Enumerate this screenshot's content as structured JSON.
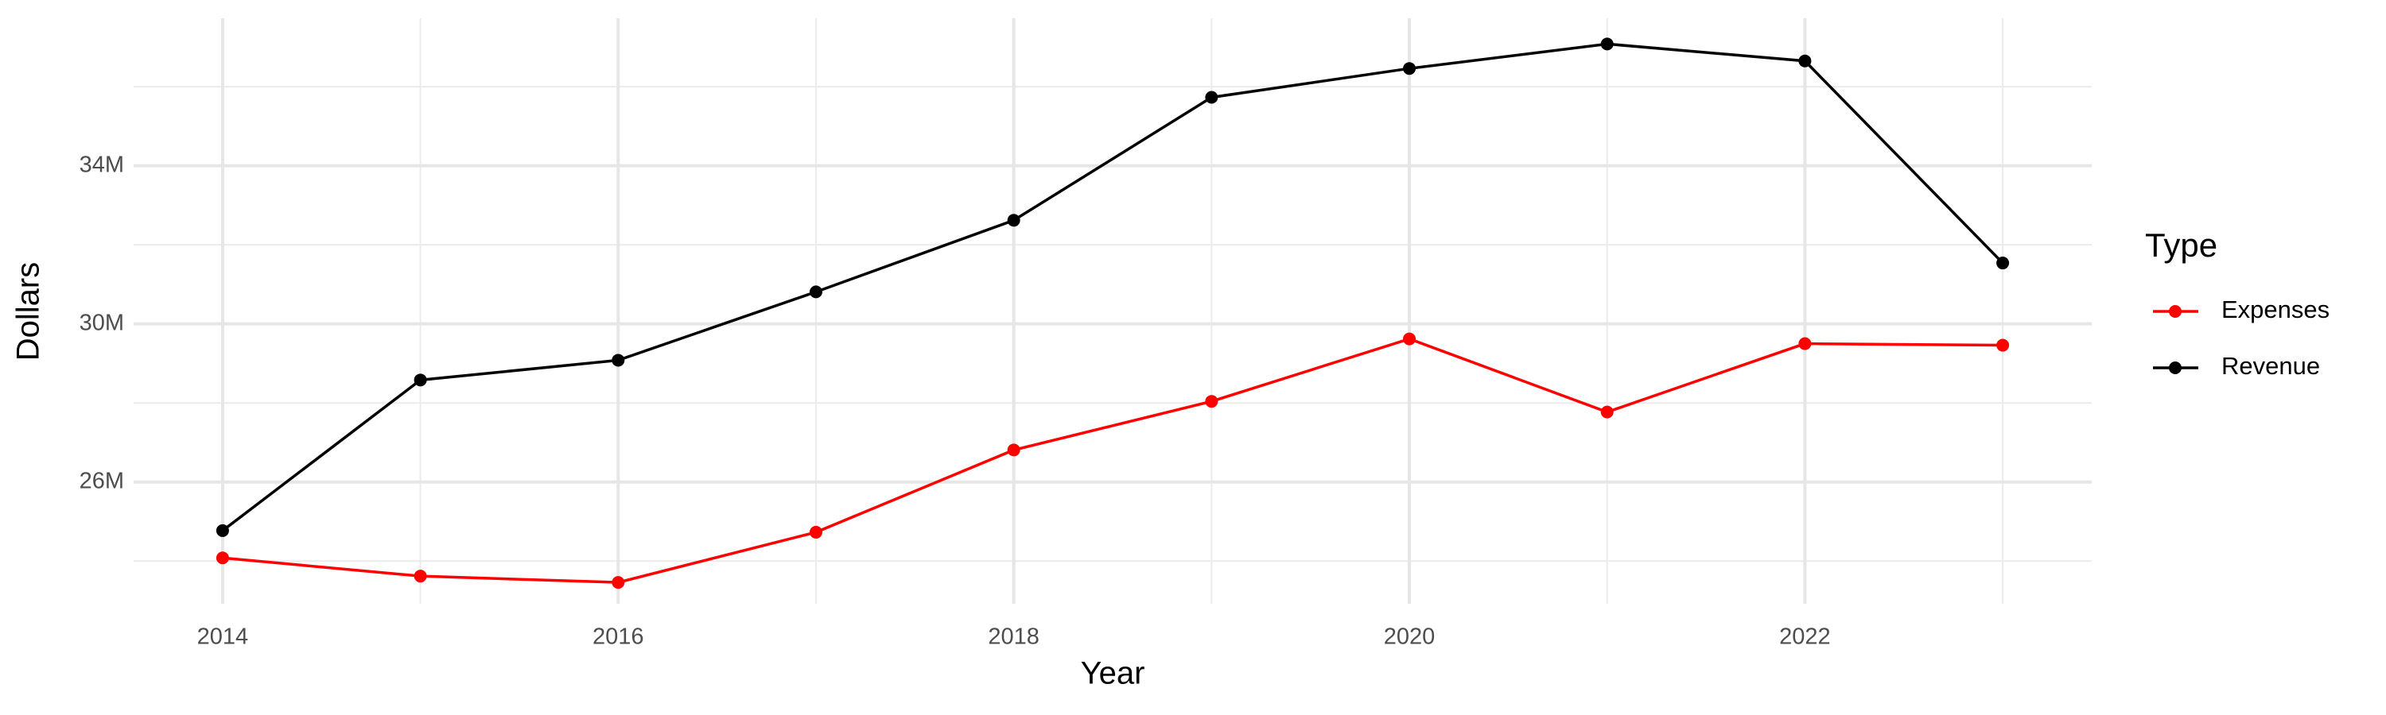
{
  "chart_data": {
    "type": "line",
    "x_label": "Year",
    "y_label": "Dollars",
    "legend_title": "Type",
    "legend_position": "right",
    "x": [
      2014,
      2015,
      2016,
      2017,
      2018,
      2019,
      2020,
      2021,
      2022,
      2023
    ],
    "series": [
      {
        "name": "Expenses",
        "color": "#ff0000",
        "values": [
          24080000,
          23620000,
          23460000,
          24730000,
          26810000,
          28040000,
          29620000,
          27770000,
          29500000,
          29460000
        ]
      },
      {
        "name": "Revenue",
        "color": "#000000",
        "values": [
          24770000,
          28580000,
          29080000,
          30810000,
          32620000,
          35730000,
          36460000,
          37080000,
          36650000,
          31540000
        ]
      }
    ],
    "xlim": [
      2013.55,
      2023.45
    ],
    "xticks": [
      2014,
      2016,
      2018,
      2020,
      2022
    ],
    "x_minor_ticks": [
      2015,
      2017,
      2019,
      2021,
      2023
    ],
    "ylim": [
      22920000,
      37730000
    ],
    "yticks": [
      {
        "value": 26000000,
        "label": "26M"
      },
      {
        "value": 30000000,
        "label": "30M"
      },
      {
        "value": 34000000,
        "label": "34M"
      }
    ],
    "y_minor_ticks": [
      24000000,
      28000000,
      32000000,
      36000000
    ],
    "grid": true
  }
}
